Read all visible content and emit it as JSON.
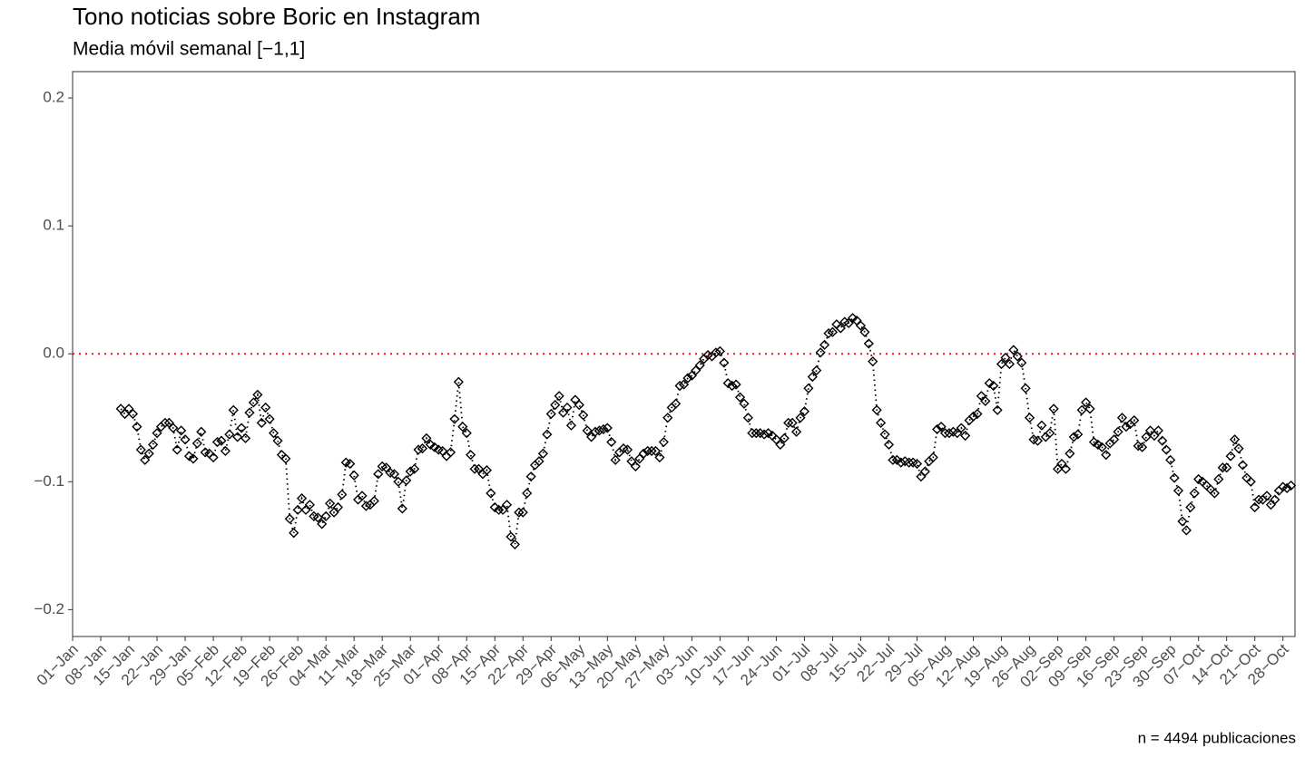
{
  "chart_data": {
    "type": "line",
    "title": "Tono noticias sobre Boric en Instagram",
    "subtitle": "Media móvil semanal [−1,1]",
    "caption": "n = 4494 publicaciones",
    "color": "#000000",
    "reference_line": {
      "value": 0,
      "color": "#e41a1c"
    },
    "grid": false,
    "xlim": [
      "01−Jan",
      "31−Oct"
    ],
    "xticks": [
      "01−Jan",
      "08−Jan",
      "15−Jan",
      "22−Jan",
      "29−Jan",
      "05−Feb",
      "12−Feb",
      "19−Feb",
      "26−Feb",
      "04−Mar",
      "11−Mar",
      "18−Mar",
      "25−Mar",
      "01−Apr",
      "08−Apr",
      "15−Apr",
      "22−Apr",
      "29−Apr",
      "06−May",
      "13−May",
      "20−May",
      "27−May",
      "03−Jun",
      "10−Jun",
      "17−Jun",
      "24−Jun",
      "01−Jul",
      "08−Jul",
      "15−Jul",
      "22−Jul",
      "29−Jul",
      "05−Aug",
      "12−Aug",
      "19−Aug",
      "26−Aug",
      "02−Sep",
      "09−Sep",
      "16−Sep",
      "23−Sep",
      "30−Sep",
      "07−Oct",
      "14−Oct",
      "21−Oct",
      "28−Oct"
    ],
    "ylim": [
      -0.221,
      0.2206
    ],
    "yticks": [
      {
        "value": -0.2,
        "label": "−0.2"
      },
      {
        "value": -0.1,
        "label": "−0.1"
      },
      {
        "value": 0,
        "label": "0.0"
      },
      0.1,
      0.2
    ],
    "x": [
      "13−Jan",
      "14−Jan",
      "15−Jan",
      "16−Jan",
      "17−Jan",
      "18−Jan",
      "19−Jan",
      "20−Jan",
      "21−Jan",
      "22−Jan",
      "23−Jan",
      "24−Jan",
      "25−Jan",
      "26−Jan",
      "27−Jan",
      "28−Jan",
      "29−Jan",
      "30−Jan",
      "31−Jan",
      "01−Feb",
      "02−Feb",
      "03−Feb",
      "04−Feb",
      "05−Feb",
      "06−Feb",
      "07−Feb",
      "08−Feb",
      "09−Feb",
      "10−Feb",
      "11−Feb",
      "12−Feb",
      "13−Feb",
      "14−Feb",
      "15−Feb",
      "16−Feb",
      "17−Feb",
      "18−Feb",
      "19−Feb",
      "20−Feb",
      "21−Feb",
      "22−Feb",
      "23−Feb",
      "24−Feb",
      "25−Feb",
      "26−Feb",
      "27−Feb",
      "28−Feb",
      "29−Feb",
      "01−Mar",
      "02−Mar",
      "03−Mar",
      "04−Mar",
      "05−Mar",
      "06−Mar",
      "07−Mar",
      "08−Mar",
      "09−Mar",
      "10−Mar",
      "11−Mar",
      "12−Mar",
      "13−Mar",
      "14−Mar",
      "15−Mar",
      "16−Mar",
      "17−Mar",
      "18−Mar",
      "19−Mar",
      "20−Mar",
      "21−Mar",
      "22−Mar",
      "23−Mar",
      "24−Mar",
      "25−Mar",
      "26−Mar",
      "27−Mar",
      "28−Mar",
      "29−Mar",
      "30−Mar",
      "31−Mar",
      "01−Apr",
      "02−Apr",
      "03−Apr",
      "04−Apr",
      "05−Apr",
      "06−Apr",
      "07−Apr",
      "08−Apr",
      "09−Apr",
      "10−Apr",
      "11−Apr",
      "12−Apr",
      "13−Apr",
      "14−Apr",
      "15−Apr",
      "16−Apr",
      "17−Apr",
      "18−Apr",
      "19−Apr",
      "20−Apr",
      "21−Apr",
      "22−Apr",
      "23−Apr",
      "24−Apr",
      "25−Apr",
      "26−Apr",
      "27−Apr",
      "28−Apr",
      "29−Apr",
      "30−Apr",
      "01−May",
      "02−May",
      "03−May",
      "04−May",
      "05−May",
      "06−May",
      "07−May",
      "08−May",
      "09−May",
      "10−May",
      "11−May",
      "12−May",
      "13−May",
      "14−May",
      "15−May",
      "16−May",
      "17−May",
      "18−May",
      "19−May",
      "20−May",
      "21−May",
      "22−May",
      "23−May",
      "24−May",
      "25−May",
      "26−May",
      "27−May",
      "28−May",
      "29−May",
      "30−May",
      "31−May",
      "01−Jun",
      "02−Jun",
      "03−Jun",
      "04−Jun",
      "05−Jun",
      "06−Jun",
      "07−Jun",
      "08−Jun",
      "09−Jun",
      "10−Jun",
      "11−Jun",
      "12−Jun",
      "13−Jun",
      "14−Jun",
      "15−Jun",
      "16−Jun",
      "17−Jun",
      "18−Jun",
      "19−Jun",
      "20−Jun",
      "21−Jun",
      "22−Jun",
      "23−Jun",
      "24−Jun",
      "25−Jun",
      "26−Jun",
      "27−Jun",
      "28−Jun",
      "29−Jun",
      "30−Jun",
      "01−Jul",
      "02−Jul",
      "03−Jul",
      "04−Jul",
      "05−Jul",
      "06−Jul",
      "07−Jul",
      "08−Jul",
      "09−Jul",
      "10−Jul",
      "11−Jul",
      "12−Jul",
      "13−Jul",
      "14−Jul",
      "15−Jul",
      "16−Jul",
      "17−Jul",
      "18−Jul",
      "19−Jul",
      "20−Jul",
      "21−Jul",
      "22−Jul",
      "23−Jul",
      "24−Jul",
      "25−Jul",
      "26−Jul",
      "27−Jul",
      "28−Jul",
      "29−Jul",
      "30−Jul",
      "31−Jul",
      "01−Aug",
      "02−Aug",
      "03−Aug",
      "04−Aug",
      "05−Aug",
      "06−Aug",
      "07−Aug",
      "08−Aug",
      "09−Aug",
      "10−Aug",
      "11−Aug",
      "12−Aug",
      "13−Aug",
      "14−Aug",
      "15−Aug",
      "16−Aug",
      "17−Aug",
      "18−Aug",
      "19−Aug",
      "20−Aug",
      "21−Aug",
      "22−Aug",
      "23−Aug",
      "24−Aug",
      "25−Aug",
      "26−Aug",
      "27−Aug",
      "28−Aug",
      "29−Aug",
      "30−Aug",
      "31−Aug",
      "01−Sep",
      "02−Sep",
      "03−Sep",
      "04−Sep",
      "05−Sep",
      "06−Sep",
      "07−Sep",
      "08−Sep",
      "09−Sep",
      "10−Sep",
      "11−Sep",
      "12−Sep",
      "13−Sep",
      "14−Sep",
      "15−Sep",
      "16−Sep",
      "17−Sep",
      "18−Sep",
      "19−Sep",
      "20−Sep",
      "21−Sep",
      "22−Sep",
      "23−Sep",
      "24−Sep",
      "25−Sep",
      "26−Sep",
      "27−Sep",
      "28−Sep",
      "29−Sep",
      "30−Sep",
      "01−Oct",
      "02−Oct",
      "03−Oct",
      "04−Oct",
      "05−Oct",
      "06−Oct",
      "07−Oct",
      "08−Oct",
      "09−Oct",
      "10−Oct",
      "11−Oct",
      "12−Oct",
      "13−Oct",
      "14−Oct",
      "15−Oct",
      "16−Oct",
      "17−Oct",
      "18−Oct",
      "19−Oct",
      "20−Oct",
      "21−Oct",
      "22−Oct",
      "23−Oct",
      "24−Oct",
      "25−Oct",
      "26−Oct",
      "27−Oct",
      "28−Oct",
      "29−Oct",
      "30−Oct"
    ],
    "values": [
      -0.043,
      -0.047,
      -0.043,
      -0.047,
      -0.057,
      -0.075,
      -0.083,
      -0.078,
      -0.071,
      -0.062,
      -0.057,
      -0.054,
      -0.054,
      -0.058,
      -0.075,
      -0.06,
      -0.067,
      -0.08,
      -0.082,
      -0.07,
      -0.061,
      -0.077,
      -0.078,
      -0.081,
      -0.069,
      -0.068,
      -0.076,
      -0.063,
      -0.044,
      -0.065,
      -0.058,
      -0.066,
      -0.046,
      -0.038,
      -0.032,
      -0.054,
      -0.042,
      -0.051,
      -0.062,
      -0.068,
      -0.079,
      -0.082,
      -0.129,
      -0.14,
      -0.122,
      -0.113,
      -0.122,
      -0.118,
      -0.127,
      -0.128,
      -0.133,
      -0.127,
      -0.117,
      -0.124,
      -0.12,
      -0.11,
      -0.085,
      -0.086,
      -0.095,
      -0.114,
      -0.111,
      -0.119,
      -0.118,
      -0.115,
      -0.094,
      -0.088,
      -0.089,
      -0.093,
      -0.094,
      -0.1,
      -0.121,
      -0.099,
      -0.092,
      -0.09,
      -0.075,
      -0.074,
      -0.066,
      -0.071,
      -0.073,
      -0.075,
      -0.076,
      -0.08,
      -0.077,
      -0.051,
      -0.022,
      -0.057,
      -0.062,
      -0.079,
      -0.09,
      -0.09,
      -0.094,
      -0.091,
      -0.109,
      -0.12,
      -0.122,
      -0.122,
      -0.118,
      -0.143,
      -0.149,
      -0.124,
      -0.124,
      -0.109,
      -0.096,
      -0.087,
      -0.084,
      -0.078,
      -0.063,
      -0.047,
      -0.04,
      -0.033,
      -0.046,
      -0.042,
      -0.056,
      -0.036,
      -0.04,
      -0.048,
      -0.06,
      -0.065,
      -0.061,
      -0.06,
      -0.059,
      -0.058,
      -0.069,
      -0.083,
      -0.077,
      -0.074,
      -0.075,
      -0.084,
      -0.088,
      -0.082,
      -0.078,
      -0.076,
      -0.076,
      -0.076,
      -0.081,
      -0.069,
      -0.05,
      -0.042,
      -0.039,
      -0.025,
      -0.024,
      -0.019,
      -0.017,
      -0.013,
      -0.009,
      -0.004,
      -0.001,
      -0.002,
      0.001,
      0.002,
      -0.007,
      -0.023,
      -0.025,
      -0.024,
      -0.034,
      -0.039,
      -0.05,
      -0.062,
      -0.062,
      -0.062,
      -0.063,
      -0.062,
      -0.064,
      -0.067,
      -0.071,
      -0.066,
      -0.054,
      -0.054,
      -0.061,
      -0.05,
      -0.045,
      -0.027,
      -0.018,
      -0.013,
      0.001,
      0.007,
      0.016,
      0.017,
      0.023,
      0.02,
      0.025,
      0.024,
      0.028,
      0.026,
      0.022,
      0.017,
      0.008,
      -0.006,
      -0.044,
      -0.054,
      -0.063,
      -0.071,
      -0.083,
      -0.083,
      -0.085,
      -0.084,
      -0.085,
      -0.085,
      -0.086,
      -0.096,
      -0.092,
      -0.084,
      -0.081,
      -0.059,
      -0.057,
      -0.062,
      -0.062,
      -0.061,
      -0.062,
      -0.058,
      -0.064,
      -0.052,
      -0.049,
      -0.047,
      -0.033,
      -0.037,
      -0.023,
      -0.025,
      -0.044,
      -0.008,
      -0.003,
      -0.008,
      0.003,
      -0.002,
      -0.007,
      -0.027,
      -0.05,
      -0.067,
      -0.068,
      -0.056,
      -0.065,
      -0.062,
      -0.043,
      -0.09,
      -0.086,
      -0.09,
      -0.078,
      -0.065,
      -0.063,
      -0.044,
      -0.038,
      -0.043,
      -0.069,
      -0.071,
      -0.073,
      -0.079,
      -0.07,
      -0.067,
      -0.061,
      -0.05,
      -0.057,
      -0.055,
      -0.052,
      -0.072,
      -0.073,
      -0.065,
      -0.06,
      -0.064,
      -0.06,
      -0.068,
      -0.075,
      -0.083,
      -0.097,
      -0.107,
      -0.131,
      -0.138,
      -0.12,
      -0.109,
      -0.098,
      -0.1,
      -0.103,
      -0.106,
      -0.109,
      -0.098,
      -0.089,
      -0.089,
      -0.08,
      -0.067,
      -0.074,
      -0.087,
      -0.097,
      -0.1,
      -0.12,
      -0.114,
      -0.114,
      -0.111,
      -0.118,
      -0.114,
      -0.107,
      -0.104,
      -0.105,
      -0.103
    ]
  }
}
